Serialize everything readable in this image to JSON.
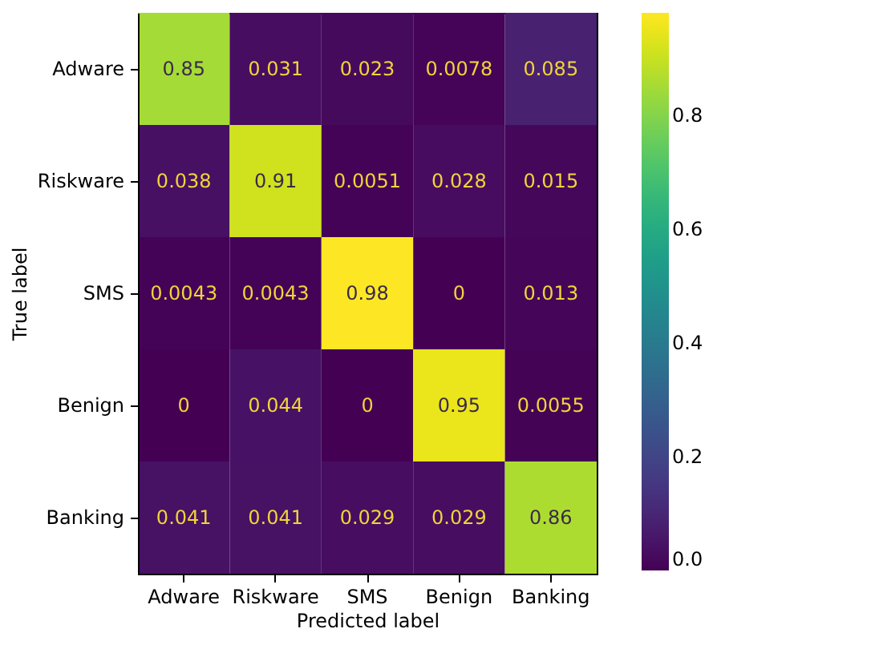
{
  "chart_data": {
    "type": "heatmap",
    "xlabel": "Predicted label",
    "ylabel": "True label",
    "categories": [
      "Adware",
      "Riskware",
      "SMS",
      "Benign",
      "Banking"
    ],
    "y_categories": [
      "Adware",
      "Riskware",
      "SMS",
      "Benign",
      "Banking"
    ],
    "cells": [
      [
        0.85,
        0.031,
        0.023,
        0.0078,
        0.085
      ],
      [
        0.038,
        0.91,
        0.0051,
        0.028,
        0.015
      ],
      [
        0.0043,
        0.0043,
        0.98,
        0,
        0.013
      ],
      [
        0,
        0.044,
        0,
        0.95,
        0.0055
      ],
      [
        0.041,
        0.041,
        0.029,
        0.029,
        0.86
      ]
    ],
    "data_labels": true,
    "clim": [
      0,
      0.98
    ],
    "cticks": [
      {
        "value": 0,
        "label": "0.0"
      },
      {
        "value": 0.2,
        "label": "0.2"
      },
      {
        "value": 0.4,
        "label": "0.4"
      },
      {
        "value": 0.6,
        "label": "0.6"
      },
      {
        "value": 0.8,
        "label": "0.8"
      }
    ]
  }
}
